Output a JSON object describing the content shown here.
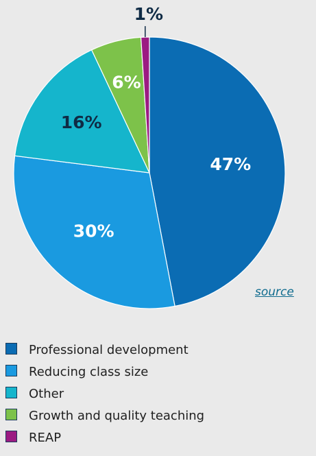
{
  "chart_data": {
    "type": "pie",
    "title": "",
    "slices": [
      {
        "name": "Professional development",
        "value": 47,
        "label": "47%",
        "color": "#0b6cb3",
        "label_color": "#ffffff"
      },
      {
        "name": "Reducing class size",
        "value": 30,
        "label": "30%",
        "color": "#1a9ae0",
        "label_color": "#ffffff"
      },
      {
        "name": "Other",
        "value": 16,
        "label": "16%",
        "color": "#15b5cc",
        "label_color": "#0f2b45"
      },
      {
        "name": "Growth and quality teaching",
        "value": 6,
        "label": "6%",
        "color": "#7dc24a",
        "label_color": "#ffffff"
      },
      {
        "name": "REAP",
        "value": 1,
        "label": "1%",
        "color": "#9b1b82",
        "label_color": "#0f2b45"
      }
    ],
    "legend_placement": "bottom"
  },
  "source_link": "source"
}
